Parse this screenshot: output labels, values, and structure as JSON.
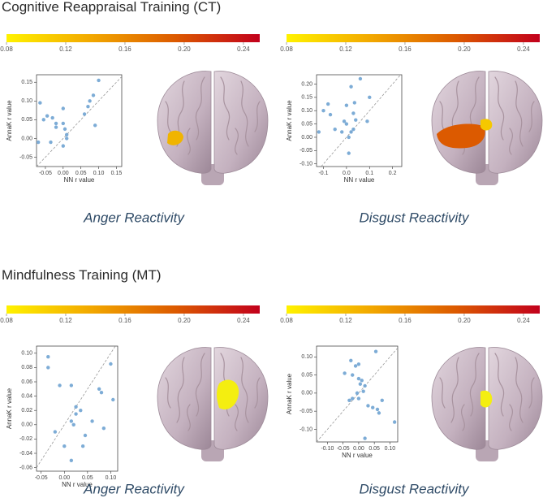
{
  "sections": [
    {
      "title": "Cognitive Reappraisal Training (CT)"
    },
    {
      "title": "Mindfulness Training (MT)"
    }
  ],
  "colorbar": {
    "lim": [
      0.08,
      0.251
    ],
    "ticks": [
      0.08,
      0.12,
      0.16,
      {
        "value": 0.2,
        "label": "0.20"
      },
      0.24
    ],
    "colors": [
      "#fff200",
      "#f2a800",
      "#dc5a00",
      "#c2001c"
    ]
  },
  "chart_data": [
    {
      "type": "scatter",
      "caption": "Anger Reactivity",
      "xlabel": "NN r value",
      "ylabel": "AnnaK r value",
      "color": "#6fa3d2",
      "xlim": [
        -0.075,
        0.165
      ],
      "ylim": [
        -0.075,
        0.17
      ],
      "xticks": [
        -0.05,
        {
          "value": 0,
          "label": "0.00"
        },
        0.05,
        {
          "value": 0.1,
          "label": "0.10"
        },
        0.15
      ],
      "yticks": [
        -0.05,
        {
          "value": 0,
          "label": "0.00"
        },
        0.05,
        {
          "value": 0.1,
          "label": "0.10"
        },
        0.15
      ],
      "x": [
        0.1,
        0.085,
        0.075,
        0.07,
        0.06,
        0.09,
        -0.065,
        -0.045,
        -0.03,
        -0.02,
        0.0,
        0.0,
        0.005,
        0.01,
        -0.055,
        -0.07,
        -0.035,
        0.0,
        0.01,
        -0.02
      ],
      "values": [
        0.155,
        0.115,
        0.1,
        0.085,
        0.065,
        0.035,
        0.095,
        0.06,
        0.055,
        0.03,
        0.08,
        0.04,
        0.025,
        0.01,
        0.05,
        -0.01,
        -0.01,
        -0.02,
        0.0,
        0.04
      ]
    },
    {
      "type": "scatter",
      "caption": "Disgust Reactivity",
      "xlabel": "NN r value",
      "ylabel": "AnnaK r value",
      "color": "#6fa3d2",
      "xlim": [
        -0.13,
        0.24
      ],
      "ylim": [
        -0.11,
        0.235
      ],
      "xticks": [
        -0.1,
        {
          "value": 0,
          "label": "0.0"
        },
        0.1,
        0.2
      ],
      "yticks": [
        {
          "value": -0.1,
          "label": "-0.10"
        },
        -0.05,
        {
          "value": 0,
          "label": "0.00"
        },
        0.05,
        {
          "value": 0.1,
          "label": "0.10"
        },
        0.15,
        {
          "value": 0.2,
          "label": "0.20"
        }
      ],
      "x": [
        0.06,
        0.02,
        0.1,
        0.035,
        0.0,
        -0.08,
        -0.1,
        -0.07,
        0.03,
        -0.01,
        0.0,
        0.04,
        0.09,
        -0.12,
        -0.05,
        -0.02,
        0.01,
        0.02,
        0.01,
        0.03
      ],
      "values": [
        0.22,
        0.19,
        0.15,
        0.13,
        0.12,
        0.125,
        0.1,
        0.085,
        0.09,
        0.06,
        0.05,
        0.065,
        0.06,
        0.02,
        0.03,
        0.02,
        0.0,
        0.02,
        -0.06,
        0.03
      ]
    },
    {
      "type": "scatter",
      "caption": "Anger Reactivity",
      "xlabel": "NN r value",
      "ylabel": "AnnaK r value",
      "color": "#6fa3d2",
      "xlim": [
        -0.06,
        0.115
      ],
      "ylim": [
        -0.065,
        0.11
      ],
      "xticks": [
        -0.05,
        {
          "value": 0,
          "label": "0.00"
        },
        0.05,
        {
          "value": 0.1,
          "label": "0.10"
        }
      ],
      "yticks": [
        -0.06,
        -0.04,
        -0.02,
        {
          "value": 0,
          "label": "0.00"
        },
        0.02,
        0.04,
        0.06,
        0.08,
        {
          "value": 0.1,
          "label": "0.10"
        }
      ],
      "x": [
        -0.035,
        -0.035,
        -0.01,
        0.015,
        0.1,
        0.075,
        0.08,
        0.105,
        -0.02,
        0.025,
        0.025,
        0.015,
        0.035,
        0.045,
        0.06,
        0.085,
        0.0,
        0.04,
        0.015,
        0.02
      ],
      "values": [
        0.095,
        0.08,
        0.055,
        0.055,
        0.085,
        0.05,
        0.045,
        0.035,
        -0.01,
        0.025,
        0.015,
        0.005,
        0.02,
        -0.015,
        0.005,
        -0.005,
        -0.03,
        -0.03,
        -0.05,
        0.0
      ]
    },
    {
      "type": "scatter",
      "caption": "Disgust Reactivity",
      "xlabel": "NN r value",
      "ylabel": "AnnaK r value",
      "color": "#6fa3d2",
      "xlim": [
        -0.135,
        0.125
      ],
      "ylim": [
        -0.135,
        0.13
      ],
      "xticks": [
        {
          "value": -0.1,
          "label": "-0.10"
        },
        -0.05,
        {
          "value": 0,
          "label": "0.00"
        },
        0.05,
        {
          "value": 0.1,
          "label": "0.10"
        }
      ],
      "yticks": [
        {
          "value": -0.1,
          "label": "-0.10"
        },
        -0.05,
        {
          "value": 0,
          "label": "0.00"
        },
        0.05,
        {
          "value": 0.1,
          "label": "0.10"
        }
      ],
      "x": [
        0.055,
        -0.025,
        -0.01,
        0.0,
        -0.045,
        -0.02,
        0.0,
        0.01,
        0.005,
        0.02,
        -0.005,
        0.015,
        -0.02,
        0.0,
        0.03,
        0.045,
        0.06,
        0.075,
        0.065,
        0.02,
        0.115,
        -0.03
      ],
      "values": [
        0.115,
        0.09,
        0.075,
        0.08,
        0.055,
        0.05,
        0.04,
        0.035,
        0.025,
        0.02,
        0.0,
        0.005,
        -0.015,
        -0.015,
        -0.035,
        -0.04,
        -0.045,
        -0.02,
        -0.055,
        -0.125,
        -0.08,
        -0.02
      ]
    }
  ]
}
